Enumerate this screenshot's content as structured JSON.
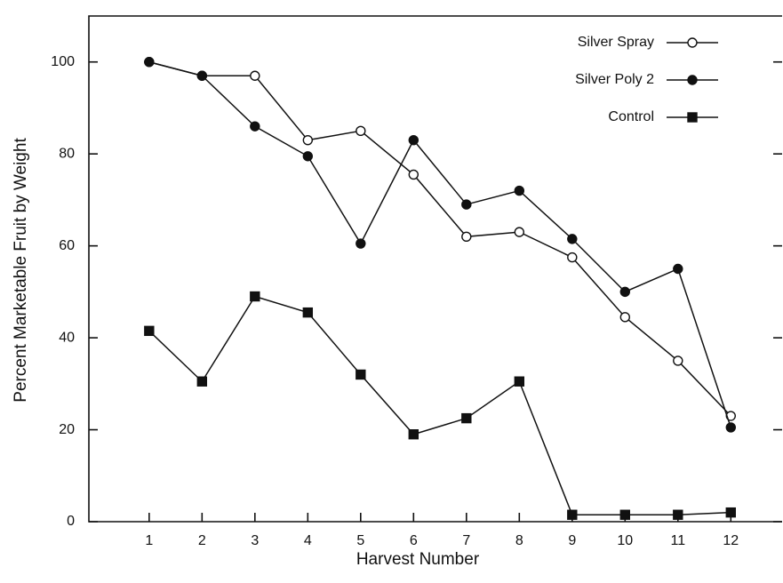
{
  "chart_data": {
    "type": "line",
    "x_label": "Harvest Number",
    "y_label": "Percent Marketable Fruit by Weight",
    "x": [
      1,
      2,
      3,
      4,
      5,
      6,
      7,
      8,
      9,
      10,
      11,
      12
    ],
    "series": [
      {
        "name": "Silver Spray",
        "color": "#111111",
        "marker": "open-circle",
        "values": [
          100,
          97,
          97,
          83,
          85,
          75.5,
          62,
          63,
          57.5,
          44.5,
          35,
          23
        ]
      },
      {
        "name": "Silver Poly 2",
        "color": "#111111",
        "marker": "filled-circle",
        "values": [
          100,
          97,
          86,
          79.5,
          60.5,
          83,
          69,
          72,
          61.5,
          50,
          55,
          20.5
        ]
      },
      {
        "name": "Control",
        "color": "#111111",
        "marker": "filled-square",
        "values": [
          41.5,
          30.5,
          49,
          45.5,
          32,
          19,
          22.5,
          30.5,
          1.5,
          1.5,
          1.5,
          2
        ]
      }
    ],
    "xlim": [
      -0.14,
      12.97
    ],
    "xticks": [
      1,
      2,
      3,
      4,
      5,
      6,
      7,
      8,
      9,
      10,
      11,
      12
    ],
    "ylim": [
      0,
      110
    ],
    "yticks": [
      0,
      20,
      40,
      60,
      80,
      100
    ],
    "grid": false,
    "legend": "upper right"
  }
}
